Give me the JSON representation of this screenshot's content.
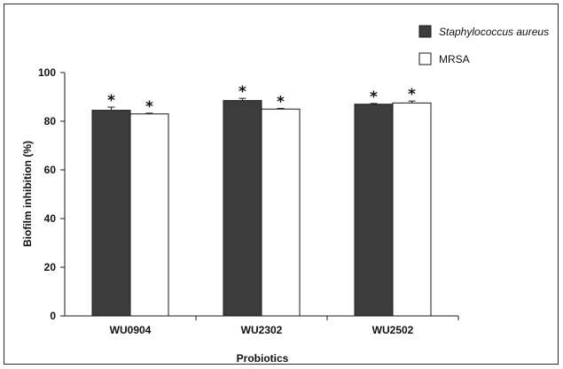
{
  "chart_data": {
    "type": "bar",
    "categories": [
      "WU0904",
      "WU2302",
      "WU2502"
    ],
    "series": [
      {
        "name": "Staphylococcus aureus",
        "values": [
          84.5,
          88.5,
          87.0
        ],
        "errors": [
          1.3,
          0.9,
          0.3
        ],
        "color": "#3c3c3c",
        "annotations": [
          "*",
          "*",
          "*"
        ]
      },
      {
        "name": "MRSA",
        "values": [
          83.0,
          85.0,
          87.5
        ],
        "errors": [
          0.3,
          0.3,
          0.8
        ],
        "color": "#ffffff",
        "annotations": [
          "*",
          "*",
          "*"
        ]
      }
    ],
    "xlabel": "Probiotics",
    "ylabel": "Biofilm inhibition (%)",
    "ylim": [
      0,
      100
    ],
    "yticks": [
      0,
      20,
      40,
      60,
      80,
      100
    ],
    "grid": false,
    "legend_position": "top-right"
  }
}
